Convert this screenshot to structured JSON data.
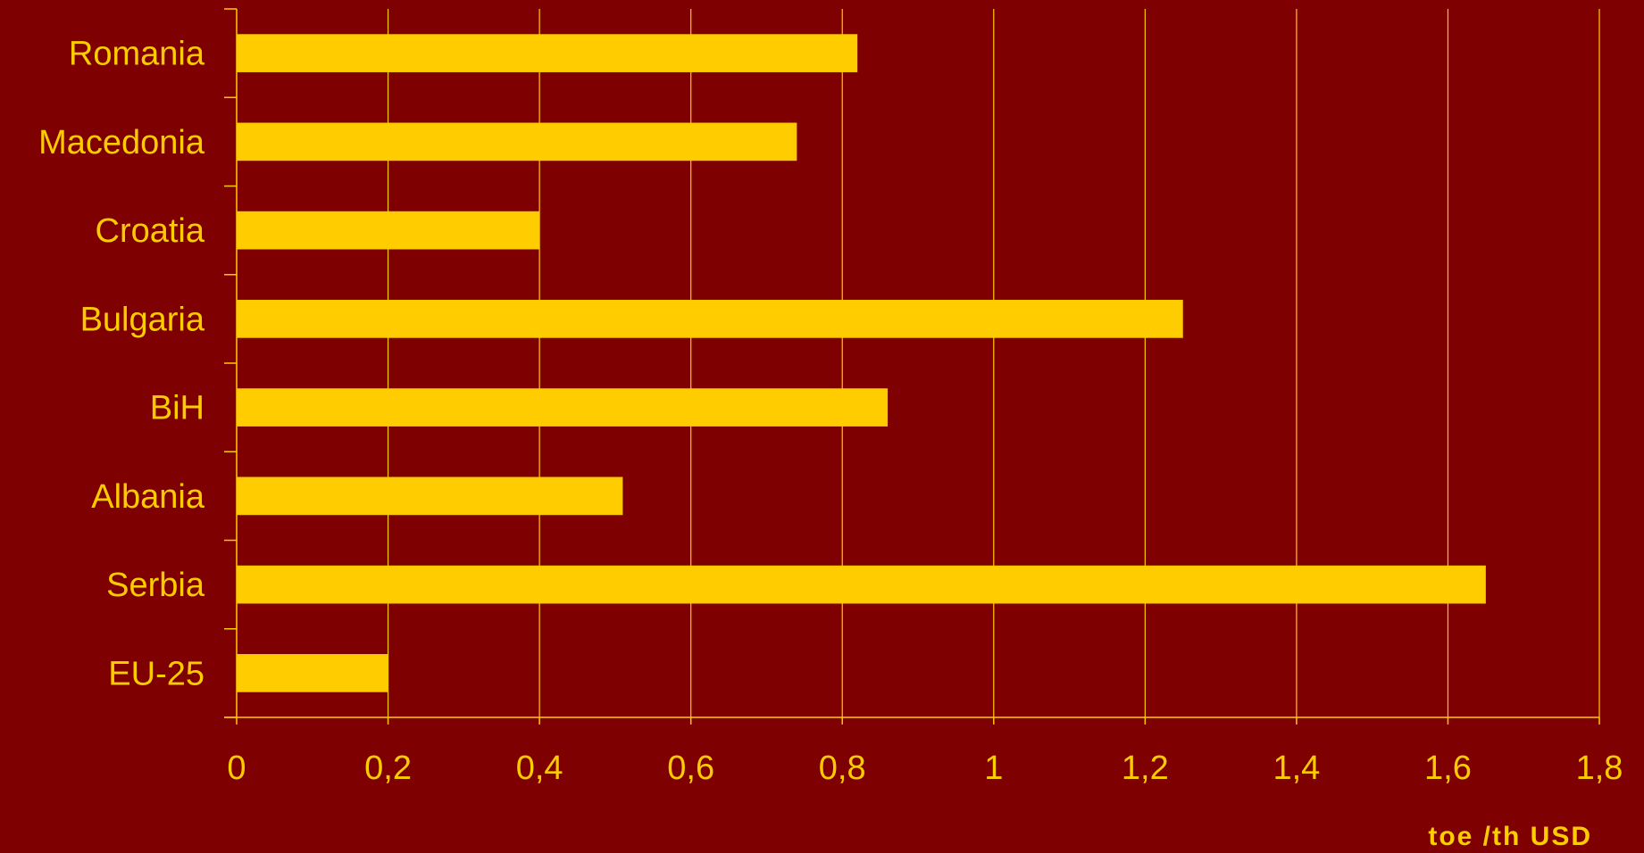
{
  "chart_data": {
    "type": "bar",
    "orientation": "horizontal",
    "title": "",
    "xlabel": "toe /th USD",
    "ylabel": "",
    "categories": [
      "Romania",
      "Macedonia",
      "Croatia",
      "Bulgaria",
      "BiH",
      "Albania",
      "Serbia",
      "EU-25"
    ],
    "values": [
      0.82,
      0.74,
      0.4,
      1.25,
      0.86,
      0.51,
      1.65,
      0.2
    ],
    "xlim": [
      0,
      1.8
    ],
    "x_ticks": [
      0,
      0.2,
      0.4,
      0.6,
      0.8,
      1,
      1.2,
      1.4,
      1.6,
      1.8
    ],
    "x_tick_labels": [
      "0",
      "0,2",
      "0,4",
      "0,6",
      "0,8",
      "1",
      "1,2",
      "1,4",
      "1,6",
      "1,8"
    ],
    "grid": "vertical",
    "legend": "none",
    "colors": {
      "background": "#7f0000",
      "bar": "#ffcc00",
      "text": "#ffcc00",
      "grid": "#ffcc00",
      "axis": "#ffcc00"
    }
  }
}
